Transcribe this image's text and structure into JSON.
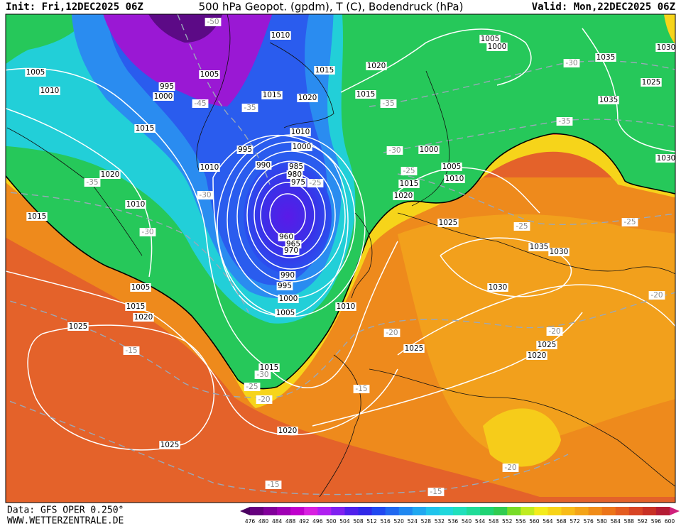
{
  "header": {
    "init": "Init: Fri,12DEC2025 06Z",
    "title": "500 hPa Geopot. (gpdm), T (C), Bodendruck (hPa)",
    "valid": "Valid: Mon,22DEC2025 06Z"
  },
  "footer": {
    "source": "Data: GFS OPER 0.250°",
    "site": "WWW.WETTERZENTRALE.DE"
  },
  "legend": {
    "ticks": [
      476,
      480,
      484,
      488,
      492,
      496,
      500,
      504,
      508,
      512,
      516,
      520,
      524,
      528,
      532,
      536,
      540,
      544,
      548,
      552,
      556,
      560,
      564,
      568,
      572,
      576,
      580,
      584,
      588,
      592,
      596,
      600
    ],
    "colors": [
      "#4a0060",
      "#66007e",
      "#82009a",
      "#a000b4",
      "#c000cc",
      "#d820e0",
      "#b020f0",
      "#8020f0",
      "#5020ec",
      "#3028e8",
      "#2048f0",
      "#2068f0",
      "#2088f0",
      "#20a8f0",
      "#20c4ec",
      "#20d8dc",
      "#20e0bc",
      "#20dc98",
      "#20d474",
      "#30cc50",
      "#78dc28",
      "#c0ec20",
      "#f4ec1c",
      "#f8d418",
      "#f8bc18",
      "#f4a418",
      "#f08c18",
      "#ec7418",
      "#e45c20",
      "#d84424",
      "#c83024",
      "#b41c34",
      "#d0207c"
    ]
  },
  "pressure_labels": [
    1010,
    1005,
    1010,
    1005,
    995,
    1000,
    1015,
    1020,
    1015,
    1020,
    1015,
    1005,
    1000,
    1035,
    1025,
    1035,
    1015,
    1010,
    1000,
    995,
    990,
    985,
    980,
    975,
    1000,
    1005,
    1010,
    1020,
    1010,
    1015,
    1020,
    1015,
    1025,
    960,
    965,
    970,
    1035,
    1030,
    990,
    995,
    1000,
    1005,
    1005,
    1015,
    1020,
    1010,
    1030,
    1025,
    1025,
    1025,
    1020,
    1015,
    1020,
    1025,
    1030,
    1030,
    1010
  ],
  "temperature_labels": [
    -50,
    -45,
    -35,
    -35,
    -30,
    -35,
    -30,
    -25,
    -35,
    -30,
    -25,
    -30,
    -25,
    -25,
    -20,
    -20,
    -20,
    -15,
    -15,
    -30,
    -25,
    -20,
    -15,
    -15,
    -20
  ]
}
